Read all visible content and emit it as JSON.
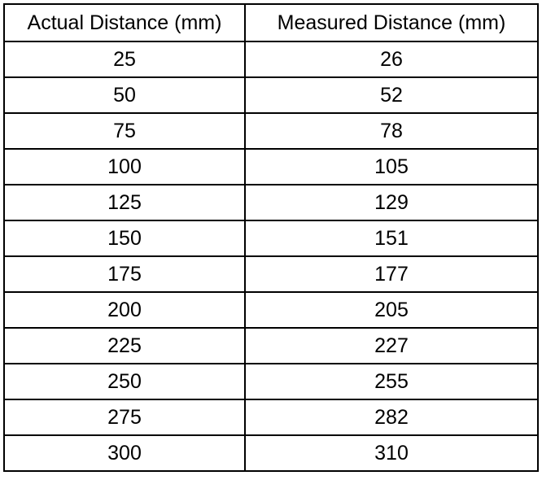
{
  "table": {
    "headers": [
      "Actual Distance (mm)",
      "Measured Distance (mm)"
    ],
    "rows": [
      [
        "25",
        "26"
      ],
      [
        "50",
        "52"
      ],
      [
        "75",
        "78"
      ],
      [
        "100",
        "105"
      ],
      [
        "125",
        "129"
      ],
      [
        "150",
        "151"
      ],
      [
        "175",
        "177"
      ],
      [
        "200",
        "205"
      ],
      [
        "225",
        "227"
      ],
      [
        "250",
        "255"
      ],
      [
        "275",
        "282"
      ],
      [
        "300",
        "310"
      ]
    ]
  }
}
